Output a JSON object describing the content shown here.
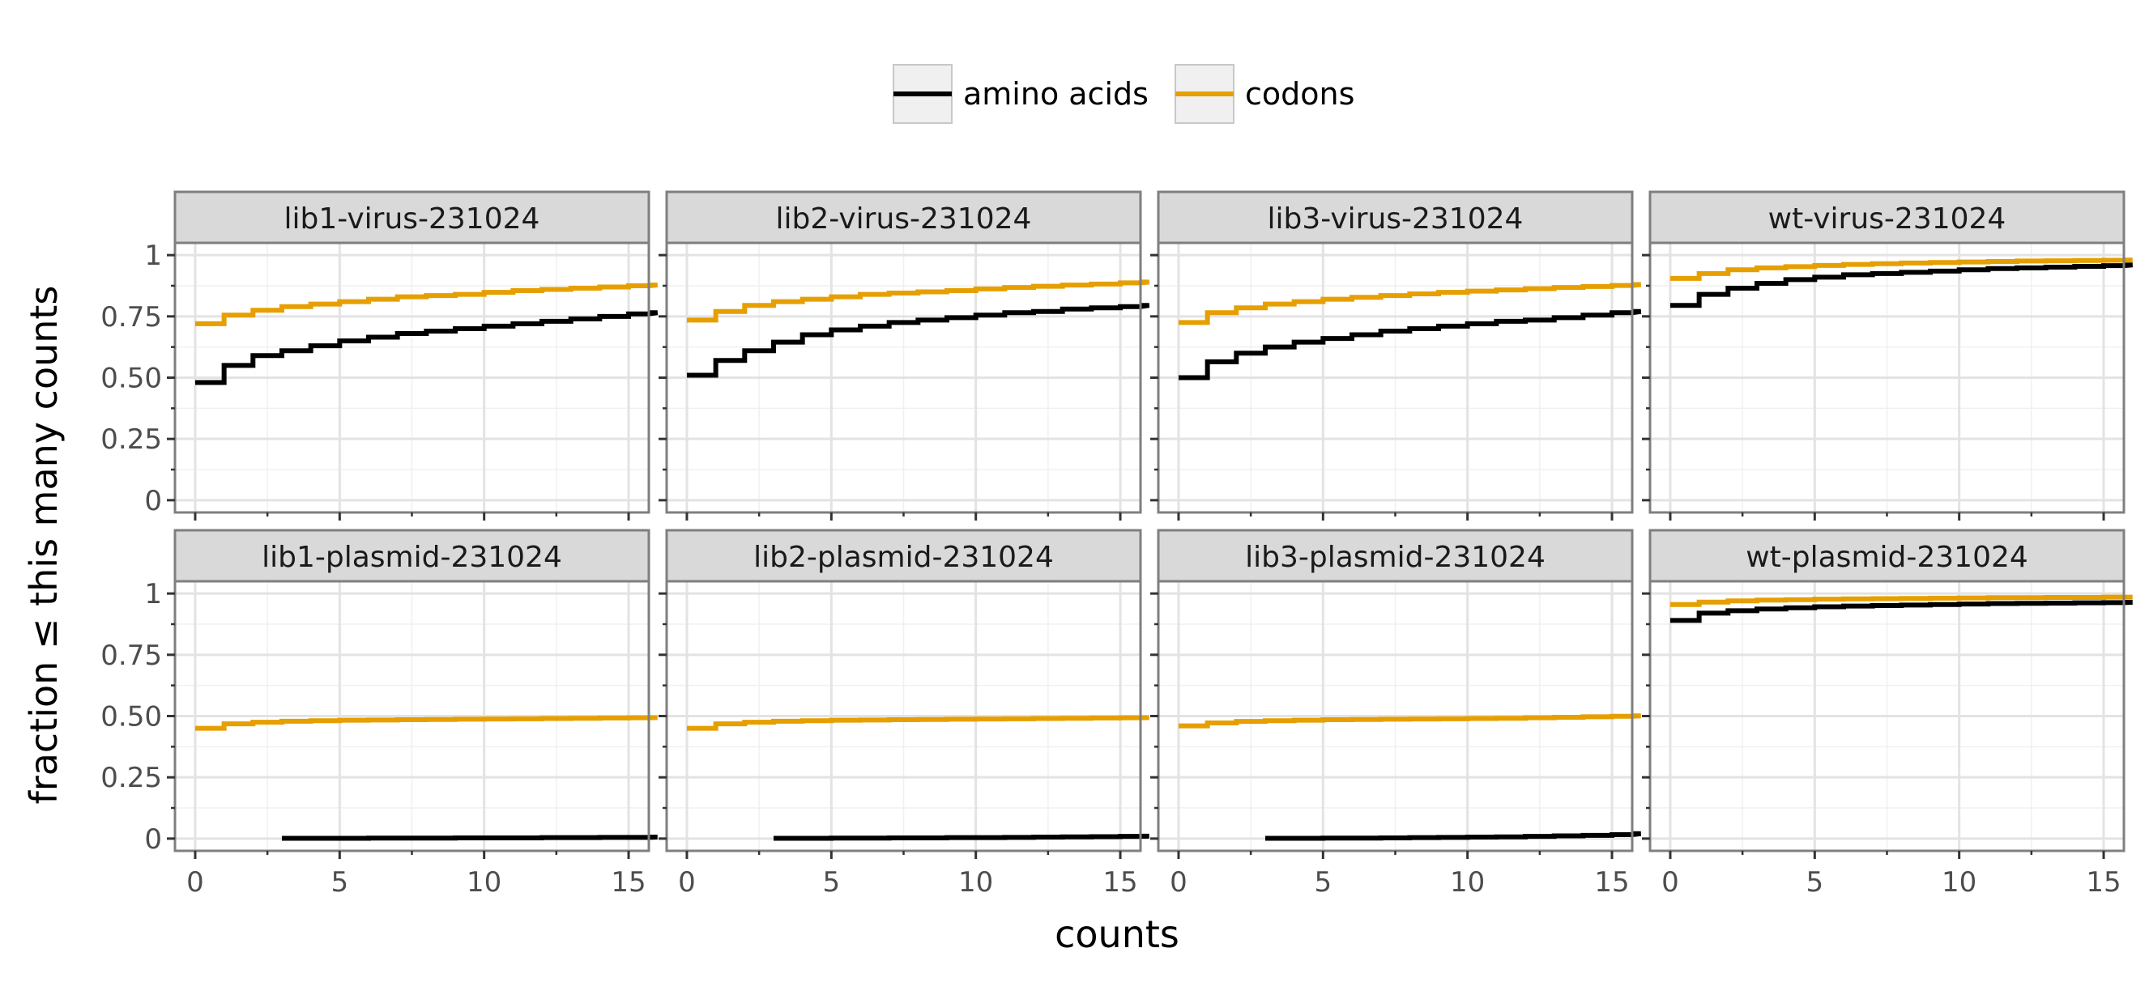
{
  "chart_data": {
    "type": "line",
    "xlabel": "counts",
    "ylabel": "fraction  ≤  this many counts",
    "xlim": [
      -0.7,
      15.7
    ],
    "ylim": [
      -0.05,
      1.05
    ],
    "x_ticks": [
      0,
      5,
      10,
      15
    ],
    "x_tick_labels": [
      "0",
      "5",
      "10",
      "15"
    ],
    "y_ticks": [
      0,
      0.25,
      0.5,
      0.75,
      1
    ],
    "y_tick_labels": [
      "0",
      "0.25",
      "0.50",
      "0.75",
      "1"
    ],
    "grid": true,
    "legend": {
      "position": "top-center",
      "entries": [
        {
          "name": "amino acids",
          "color": "#000000"
        },
        {
          "name": "codons",
          "color": "#E69F00"
        }
      ]
    },
    "x": [
      0,
      1,
      2,
      3,
      4,
      5,
      6,
      7,
      8,
      9,
      10,
      11,
      12,
      13,
      14,
      15,
      16
    ],
    "facets": [
      {
        "title": "lib1-virus-231024",
        "series": [
          {
            "name": "amino acids",
            "values": [
              0.48,
              0.55,
              0.59,
              0.61,
              0.63,
              0.65,
              0.665,
              0.68,
              0.69,
              0.7,
              0.71,
              0.72,
              0.73,
              0.74,
              0.75,
              0.76,
              0.765
            ]
          },
          {
            "name": "codons",
            "values": [
              0.72,
              0.755,
              0.775,
              0.79,
              0.8,
              0.81,
              0.82,
              0.83,
              0.835,
              0.84,
              0.848,
              0.855,
              0.86,
              0.865,
              0.87,
              0.875,
              0.878
            ]
          }
        ]
      },
      {
        "title": "lib2-virus-231024",
        "series": [
          {
            "name": "amino acids",
            "values": [
              0.51,
              0.57,
              0.61,
              0.645,
              0.675,
              0.695,
              0.71,
              0.725,
              0.735,
              0.745,
              0.755,
              0.765,
              0.77,
              0.78,
              0.785,
              0.79,
              0.795
            ]
          },
          {
            "name": "codons",
            "values": [
              0.735,
              0.77,
              0.795,
              0.81,
              0.82,
              0.83,
              0.84,
              0.845,
              0.85,
              0.855,
              0.862,
              0.868,
              0.873,
              0.878,
              0.882,
              0.887,
              0.89
            ]
          }
        ]
      },
      {
        "title": "lib3-virus-231024",
        "series": [
          {
            "name": "amino acids",
            "values": [
              0.5,
              0.565,
              0.6,
              0.625,
              0.645,
              0.66,
              0.675,
              0.69,
              0.7,
              0.71,
              0.72,
              0.73,
              0.735,
              0.745,
              0.755,
              0.765,
              0.77
            ]
          },
          {
            "name": "codons",
            "values": [
              0.725,
              0.765,
              0.785,
              0.8,
              0.81,
              0.82,
              0.828,
              0.835,
              0.842,
              0.848,
              0.853,
              0.858,
              0.863,
              0.868,
              0.872,
              0.876,
              0.88
            ]
          }
        ]
      },
      {
        "title": "wt-virus-231024",
        "series": [
          {
            "name": "amino acids",
            "values": [
              0.795,
              0.84,
              0.865,
              0.885,
              0.9,
              0.91,
              0.92,
              0.925,
              0.93,
              0.935,
              0.94,
              0.945,
              0.948,
              0.951,
              0.954,
              0.957,
              0.96
            ]
          },
          {
            "name": "codons",
            "values": [
              0.905,
              0.925,
              0.94,
              0.948,
              0.953,
              0.958,
              0.962,
              0.965,
              0.968,
              0.97,
              0.972,
              0.974,
              0.976,
              0.977,
              0.978,
              0.979,
              0.98
            ]
          }
        ]
      },
      {
        "title": "lib1-plasmid-231024",
        "series": [
          {
            "name": "amino acids",
            "values": [
              null,
              null,
              null,
              0.001,
              0.001,
              0.001,
              0.002,
              0.002,
              0.002,
              0.003,
              0.003,
              0.003,
              0.004,
              0.004,
              0.005,
              0.005,
              0.006
            ]
          },
          {
            "name": "codons",
            "values": [
              0.45,
              0.468,
              0.475,
              0.479,
              0.481,
              0.483,
              0.484,
              0.485,
              0.486,
              0.487,
              0.488,
              0.489,
              0.49,
              0.491,
              0.492,
              0.493,
              0.494
            ]
          }
        ]
      },
      {
        "title": "lib2-plasmid-231024",
        "series": [
          {
            "name": "amino acids",
            "values": [
              null,
              null,
              null,
              0.001,
              0.001,
              0.002,
              0.002,
              0.003,
              0.003,
              0.004,
              0.004,
              0.005,
              0.006,
              0.007,
              0.008,
              0.009,
              0.01
            ]
          },
          {
            "name": "codons",
            "values": [
              0.45,
              0.468,
              0.475,
              0.479,
              0.481,
              0.483,
              0.484,
              0.485,
              0.486,
              0.487,
              0.488,
              0.489,
              0.49,
              0.491,
              0.492,
              0.493,
              0.494
            ]
          }
        ]
      },
      {
        "title": "lib3-plasmid-231024",
        "series": [
          {
            "name": "amino acids",
            "values": [
              null,
              null,
              null,
              0.001,
              0.001,
              0.002,
              0.002,
              0.003,
              0.004,
              0.005,
              0.006,
              0.007,
              0.009,
              0.011,
              0.013,
              0.016,
              0.02
            ]
          },
          {
            "name": "codons",
            "values": [
              0.46,
              0.472,
              0.478,
              0.481,
              0.483,
              0.485,
              0.486,
              0.487,
              0.488,
              0.489,
              0.49,
              0.491,
              0.493,
              0.495,
              0.497,
              0.499,
              0.501
            ]
          }
        ]
      },
      {
        "title": "wt-plasmid-231024",
        "series": [
          {
            "name": "amino acids",
            "values": [
              0.89,
              0.92,
              0.93,
              0.937,
              0.942,
              0.946,
              0.949,
              0.951,
              0.953,
              0.955,
              0.957,
              0.959,
              0.96,
              0.961,
              0.962,
              0.963,
              0.964
            ]
          },
          {
            "name": "codons",
            "values": [
              0.955,
              0.965,
              0.97,
              0.973,
              0.975,
              0.977,
              0.978,
              0.979,
              0.98,
              0.981,
              0.982,
              0.983,
              0.983,
              0.984,
              0.984,
              0.985,
              0.985
            ]
          }
        ]
      }
    ]
  }
}
